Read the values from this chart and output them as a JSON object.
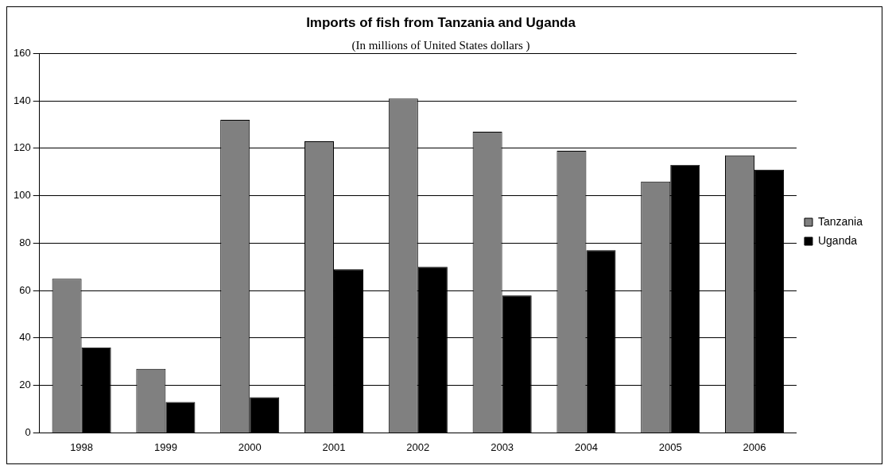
{
  "chart_data": {
    "type": "bar",
    "title": "Imports of fish from Tanzania and Uganda",
    "subtitle": "(In millions of United States dollars )",
    "categories": [
      "1998",
      "1999",
      "2000",
      "2001",
      "2002",
      "2003",
      "2004",
      "2005",
      "2006"
    ],
    "series": [
      {
        "name": "Tanzania",
        "color": "#808080",
        "values": [
          65,
          27,
          132,
          123,
          141,
          127,
          119,
          106,
          117
        ]
      },
      {
        "name": "Uganda",
        "color": "#000000",
        "values": [
          36,
          13,
          15,
          69,
          70,
          58,
          77,
          113,
          111
        ]
      }
    ],
    "ylim": [
      0,
      160
    ],
    "yticks": [
      0,
      20,
      40,
      60,
      80,
      100,
      120,
      140,
      160
    ],
    "grid": "y",
    "legend": "right"
  }
}
